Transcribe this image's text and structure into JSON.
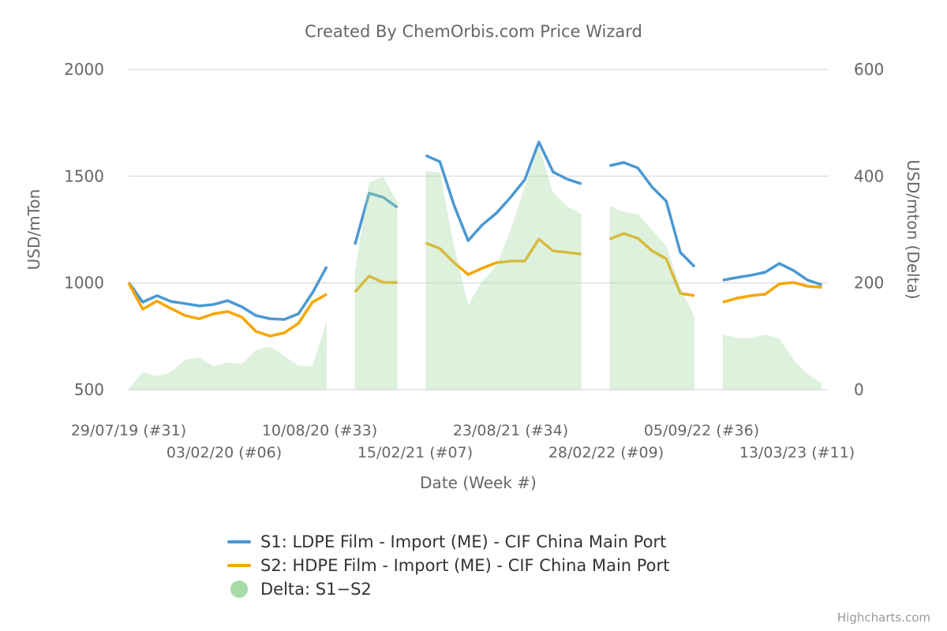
{
  "chart_data": {
    "type": "line",
    "title": "Created By ChemOrbis.com Price Wizard",
    "xlabel": "Date (Week #)",
    "ylabel": "USD/mTon",
    "ylabel_right": "USD/mton (Delta)",
    "ylim": [
      500,
      2000
    ],
    "ylim_right": [
      0,
      600
    ],
    "yticks": [
      "2000",
      "1500",
      "1000",
      "500"
    ],
    "yticks_right": [
      "600",
      "400",
      "200",
      "0"
    ],
    "xticks": [
      "29/07/19 (#31)",
      "03/02/20 (#06)",
      "10/08/20 (#33)",
      "15/02/21 (#07)",
      "23/08/21 (#34)",
      "28/02/22 (#09)",
      "05/09/22 (#36)",
      "13/03/23 (#11)"
    ],
    "xtick_dates": [
      "29/07/19",
      "03/02/20",
      "10/08/20",
      "15/02/21",
      "23/08/21",
      "28/02/22",
      "05/09/22",
      "13/03/23"
    ],
    "grid": true,
    "legend_placement": "bottom-center",
    "x": [
      "29/07/19",
      "26/08/19",
      "23/09/19",
      "21/10/19",
      "18/11/19",
      "16/12/19",
      "13/01/20",
      "10/02/20",
      "09/03/20",
      "06/04/20",
      "04/05/20",
      "01/06/20",
      "29/06/20",
      "27/07/20",
      "24/08/20",
      "21/09/20",
      "19/10/20",
      "16/11/20",
      "14/12/20",
      "11/01/21",
      "08/02/21",
      "08/03/21",
      "05/04/21",
      "03/05/21",
      "31/05/21",
      "28/06/21",
      "26/07/21",
      "23/08/21",
      "20/09/21",
      "18/10/21",
      "15/11/21",
      "13/12/21",
      "10/01/22",
      "07/02/22",
      "07/03/22",
      "04/04/22",
      "02/05/22",
      "30/05/22",
      "27/06/22",
      "25/07/22",
      "22/08/22",
      "19/09/22",
      "17/10/22",
      "14/11/22",
      "12/12/22",
      "09/01/23",
      "06/02/23",
      "06/03/23",
      "03/04/23",
      "01/05/23"
    ],
    "series": [
      {
        "name": "S1: LDPE Film - Import (ME) - CIF China Main Port",
        "color": "#4a98d3",
        "axis": "left",
        "type": "line",
        "values": [
          1002,
          910,
          940,
          913,
          903,
          892,
          899,
          917,
          888,
          847,
          832,
          829,
          855,
          954,
          1076,
          null,
          1180,
          1420,
          1401,
          1353,
          null,
          1597,
          1568,
          1364,
          1198,
          1272,
          1327,
          1401,
          1483,
          1660,
          1520,
          1486,
          1464,
          null,
          1549,
          1564,
          1538,
          1449,
          1383,
          1143,
          1076,
          null,
          1013,
          1025,
          1036,
          1050,
          1091,
          1058,
          1013,
          991
        ]
      },
      {
        "name": "S2: HDPE Film - Import (ME) - CIF China Main Port",
        "color": "#f7a600",
        "axis": "left",
        "type": "line",
        "values": [
          1000,
          877,
          915,
          880,
          847,
          832,
          855,
          866,
          840,
          773,
          751,
          766,
          810,
          910,
          947,
          null,
          958,
          1032,
          1002,
          1002,
          null,
          1187,
          1161,
          1095,
          1039,
          1069,
          1095,
          1102,
          1102,
          1205,
          1150,
          1143,
          1135,
          null,
          1205,
          1231,
          1209,
          1150,
          1113,
          951,
          940,
          null,
          910,
          928,
          940,
          947,
          995,
          1002,
          984,
          980
        ]
      },
      {
        "name": "Delta: S1−S2",
        "color": "#a6dba6",
        "axis": "right",
        "type": "area",
        "values": [
          2,
          33,
          25,
          33,
          56,
          60,
          44,
          51,
          48,
          74,
          81,
          63,
          45,
          44,
          129,
          null,
          222,
          388,
          399,
          351,
          null,
          410,
          407,
          269,
          159,
          203,
          232,
          299,
          381,
          455,
          370,
          343,
          329,
          null,
          344,
          333,
          329,
          299,
          270,
          192,
          136,
          null,
          103,
          97,
          96,
          103,
          96,
          56,
          29,
          11
        ]
      }
    ]
  },
  "credits": "Highcharts.com"
}
